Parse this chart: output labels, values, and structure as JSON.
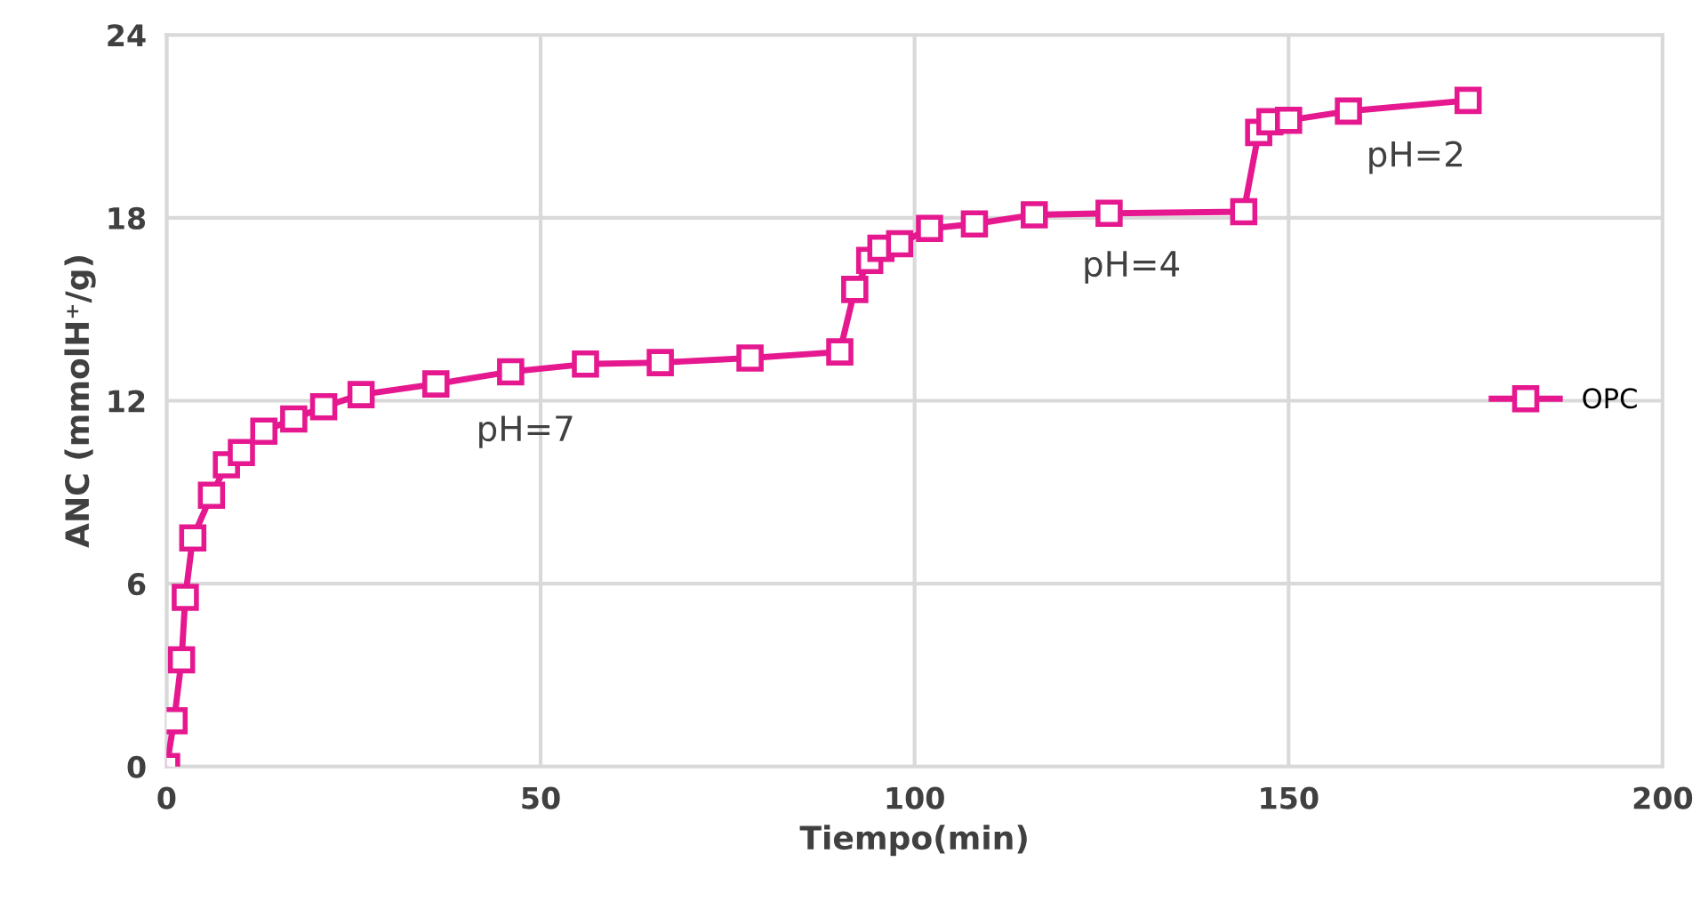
{
  "chart_data": {
    "type": "line",
    "xlabel": "Tiempo(min)",
    "ylabel": "ANC (mmolH⁺/g)",
    "xlim": [
      0,
      200
    ],
    "xticks": [
      0,
      50,
      100,
      150,
      200
    ],
    "ylim": [
      0,
      24
    ],
    "yticks": [
      0,
      6,
      12,
      18,
      24
    ],
    "grid": true,
    "legend": "center right",
    "marker": "square",
    "line_style": "solid",
    "series": [
      {
        "name": "OPC",
        "color": "#e5188f",
        "x": [
          0,
          1,
          2,
          2.5,
          3.5,
          6,
          8,
          10,
          13,
          17,
          21,
          26,
          36,
          46,
          56,
          66,
          78,
          90,
          92,
          94,
          95.5,
          98,
          102,
          108,
          116,
          126,
          144,
          146,
          147.5,
          150,
          158,
          174
        ],
        "values": [
          0,
          1.5,
          3.5,
          5.55,
          7.5,
          8.9,
          9.9,
          10.3,
          11.0,
          11.4,
          11.8,
          12.2,
          12.55,
          12.95,
          13.2,
          13.25,
          13.4,
          13.6,
          15.65,
          16.6,
          17.0,
          17.15,
          17.65,
          17.8,
          18.1,
          18.15,
          18.2,
          20.8,
          21.15,
          21.2,
          21.5,
          21.85
        ]
      }
    ],
    "annotations": [
      "pH=7",
      "pH=4",
      "pH=2"
    ]
  }
}
